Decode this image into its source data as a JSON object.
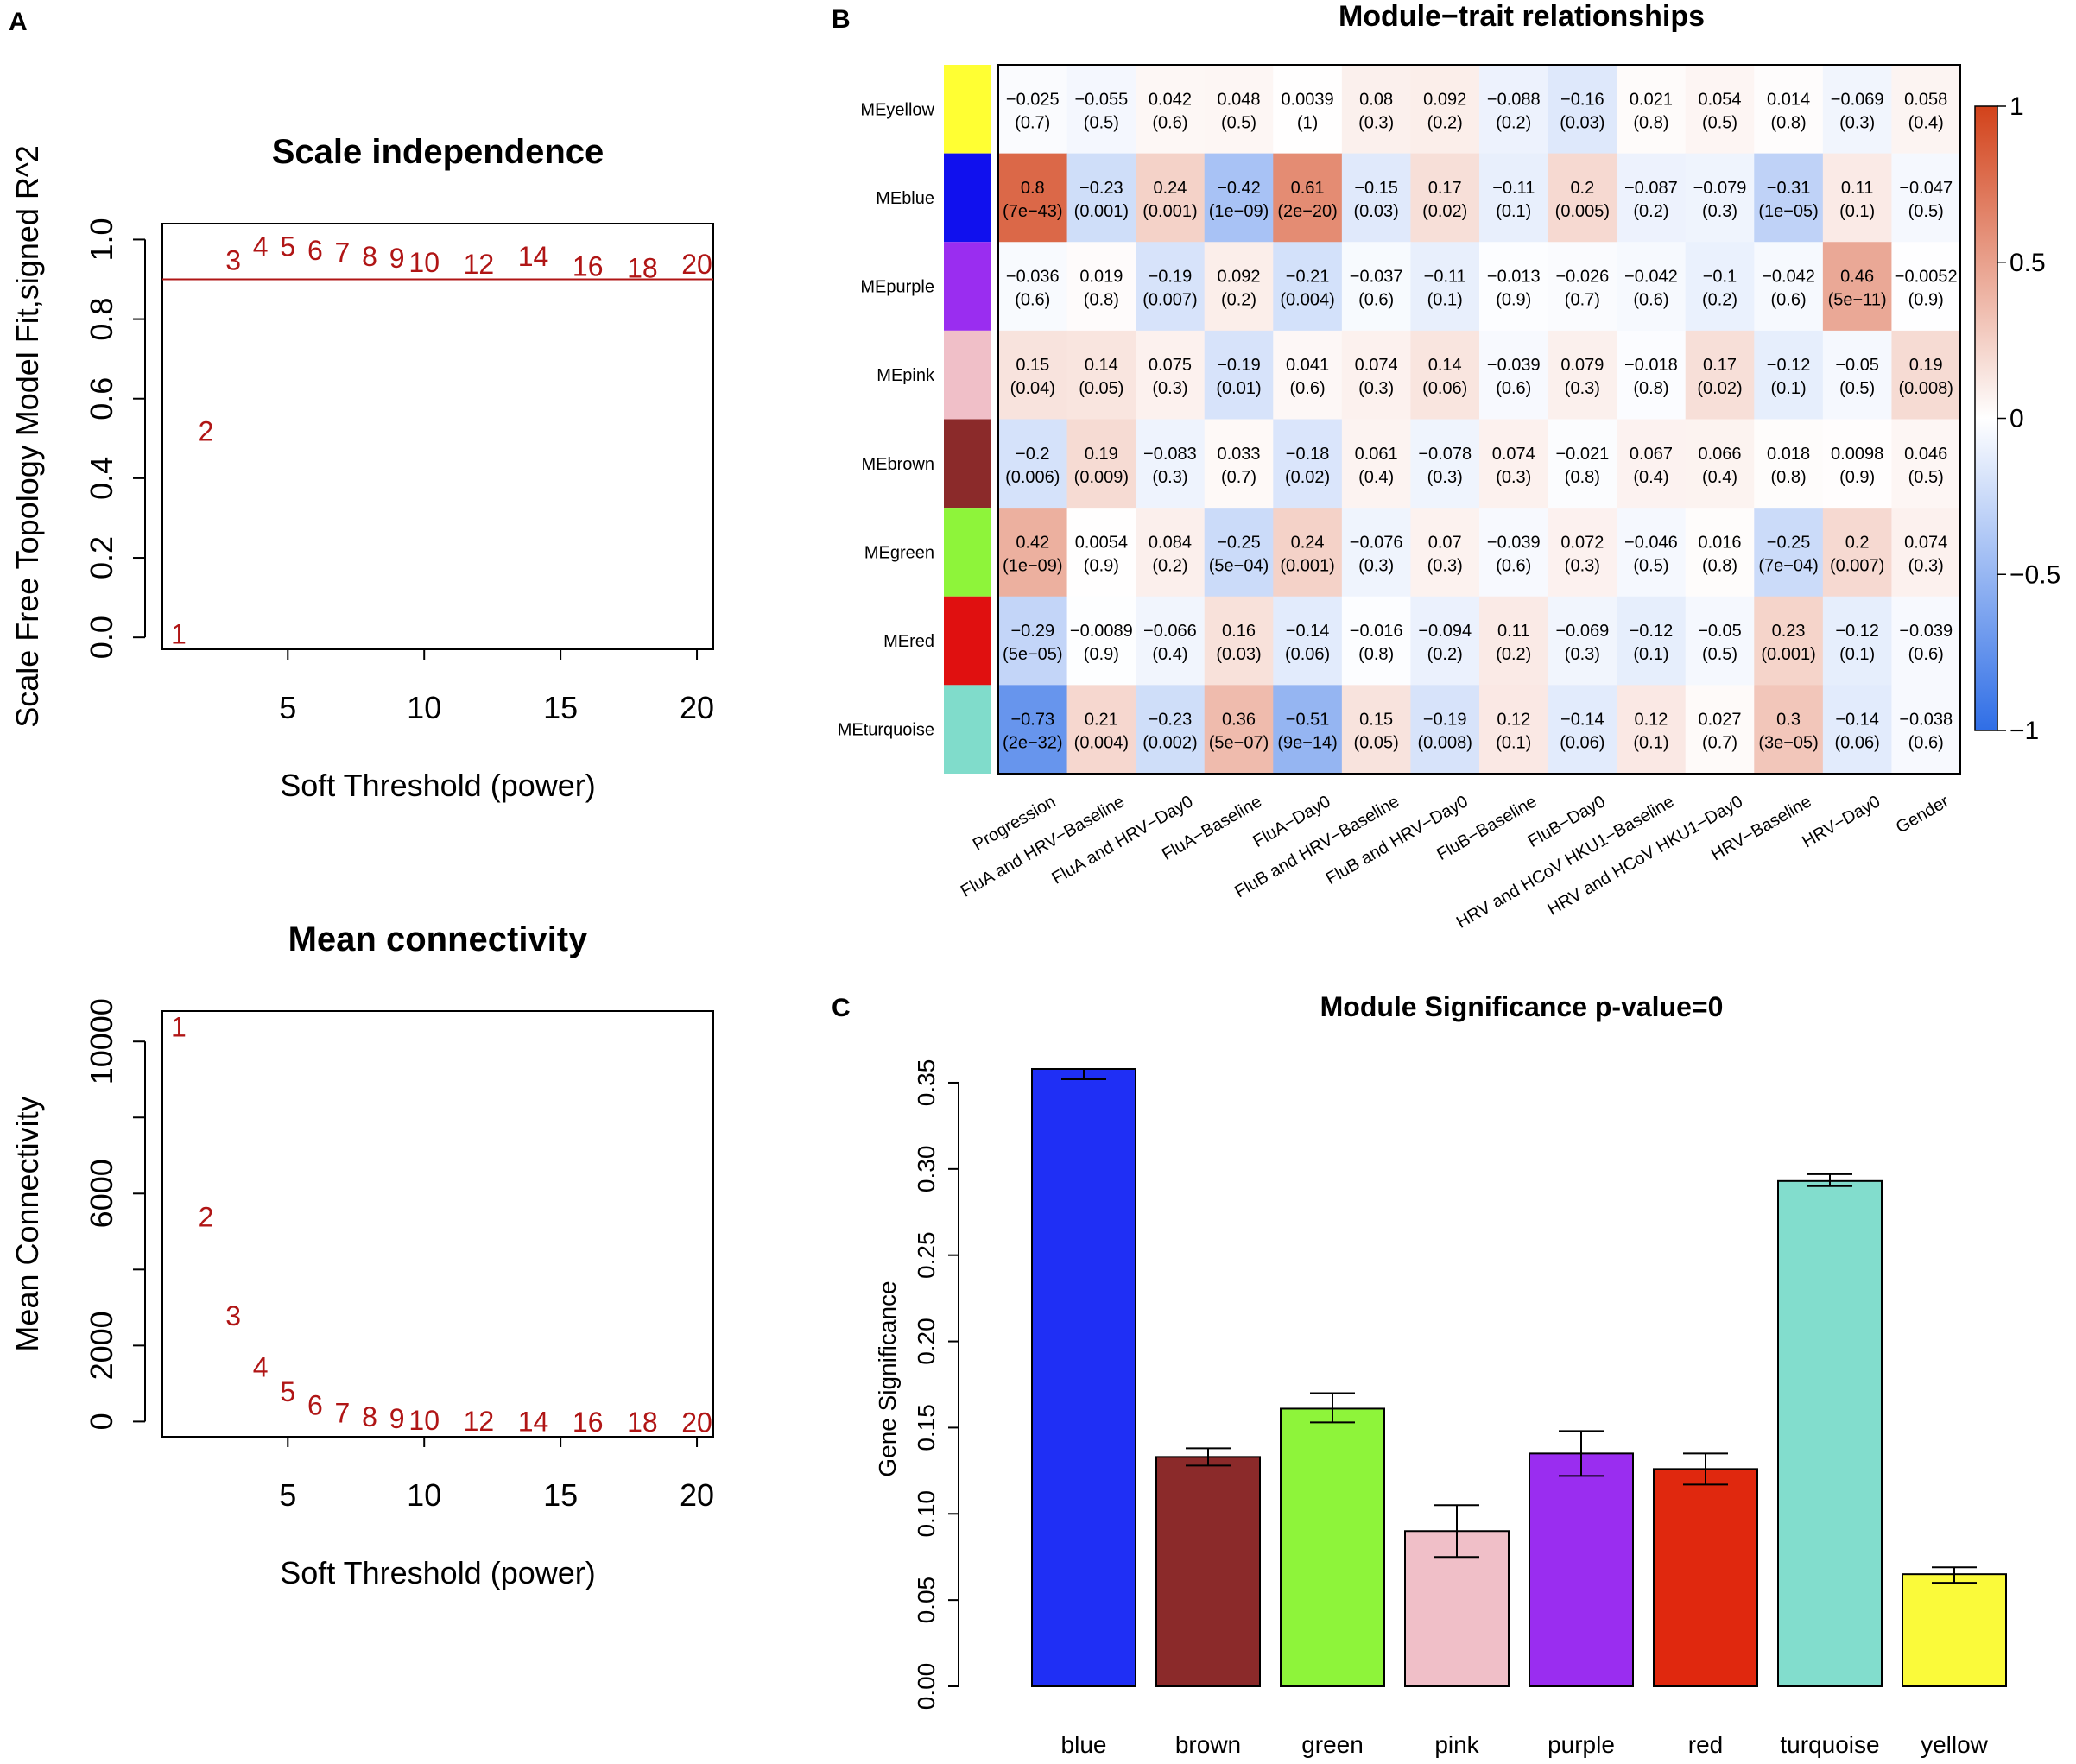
{
  "panel_labels": {
    "a": "A",
    "b": "B",
    "c": "C"
  },
  "chart_data": [
    {
      "id": "A1",
      "type": "scatter",
      "title": "Scale independence",
      "xlabel": "Soft Threshold (power)",
      "ylabel": "Scale Free Topology Model Fit,signed R^2",
      "xlim": [
        0.4,
        20.6
      ],
      "ylim": [
        -0.03,
        1.04
      ],
      "xticks": [
        "5",
        "10",
        "15",
        "20"
      ],
      "xtick_values": [
        5,
        10,
        15,
        20
      ],
      "yticks": [
        "0.0",
        "0.2",
        "0.4",
        "0.6",
        "0.8",
        "1.0"
      ],
      "ytick_values": [
        0,
        0.2,
        0.4,
        0.6,
        0.8,
        1.0
      ],
      "hline": 0.9,
      "points": [
        {
          "label": "1",
          "x": 1,
          "y": 0.01
        },
        {
          "label": "2",
          "x": 2,
          "y": 0.52
        },
        {
          "label": "3",
          "x": 3,
          "y": 0.95
        },
        {
          "label": "4",
          "x": 4,
          "y": 0.985
        },
        {
          "label": "5",
          "x": 5,
          "y": 0.985
        },
        {
          "label": "6",
          "x": 6,
          "y": 0.975
        },
        {
          "label": "7",
          "x": 7,
          "y": 0.97
        },
        {
          "label": "8",
          "x": 8,
          "y": 0.96
        },
        {
          "label": "9",
          "x": 9,
          "y": 0.955
        },
        {
          "label": "10",
          "x": 10,
          "y": 0.945
        },
        {
          "label": "12",
          "x": 12,
          "y": 0.94
        },
        {
          "label": "14",
          "x": 14,
          "y": 0.96
        },
        {
          "label": "16",
          "x": 16,
          "y": 0.935
        },
        {
          "label": "18",
          "x": 18,
          "y": 0.93
        },
        {
          "label": "20",
          "x": 20,
          "y": 0.94
        }
      ]
    },
    {
      "id": "A2",
      "type": "scatter",
      "title": "Mean connectivity",
      "xlabel": "Soft Threshold (power)",
      "ylabel": "Mean Connectivity",
      "xlim": [
        0.4,
        20.6
      ],
      "ylim": [
        -400,
        10800
      ],
      "xticks": [
        "5",
        "10",
        "15",
        "20"
      ],
      "xtick_values": [
        5,
        10,
        15,
        20
      ],
      "yticks": [
        "0",
        "2000",
        "6000",
        "10000"
      ],
      "ytick_values": [
        0,
        2000,
        6000,
        10000
      ],
      "yminor_values": [
        4000,
        8000
      ],
      "points": [
        {
          "label": "1",
          "x": 1,
          "y": 10400
        },
        {
          "label": "2",
          "x": 2,
          "y": 5400
        },
        {
          "label": "3",
          "x": 3,
          "y": 2800
        },
        {
          "label": "4",
          "x": 4,
          "y": 1450
        },
        {
          "label": "5",
          "x": 5,
          "y": 800
        },
        {
          "label": "6",
          "x": 6,
          "y": 450
        },
        {
          "label": "7",
          "x": 7,
          "y": 250
        },
        {
          "label": "8",
          "x": 8,
          "y": 150
        },
        {
          "label": "9",
          "x": 9,
          "y": 100
        },
        {
          "label": "10",
          "x": 10,
          "y": 60
        },
        {
          "label": "12",
          "x": 12,
          "y": 30
        },
        {
          "label": "14",
          "x": 14,
          "y": 20
        },
        {
          "label": "16",
          "x": 16,
          "y": 10
        },
        {
          "label": "18",
          "x": 18,
          "y": 5
        },
        {
          "label": "20",
          "x": 20,
          "y": 2
        }
      ]
    },
    {
      "id": "B",
      "type": "heatmap",
      "title": "Module−trait relationships",
      "rows": [
        "MEyellow",
        "MEblue",
        "MEpurple",
        "MEpink",
        "MEbrown",
        "MEgreen",
        "MEred",
        "MEturquoise"
      ],
      "row_colors": [
        "#ffff33",
        "#1010ee",
        "#9a2df0",
        "#f0bfc8",
        "#8b2a2a",
        "#8ef43a",
        "#e01010",
        "#80dccb"
      ],
      "columns": [
        "Progression",
        "FluA and HRV−Baseline",
        "FluA and HRV−Day0",
        "FluA−Baseline",
        "FluA−Day0",
        "FluB and HRV−Baseline",
        "FluB and HRV−Day0",
        "FluB−Baseline",
        "FluB−Day0",
        "HRV and HCoV HKU1−Baseline",
        "HRV and HCoV HKU1−Day0",
        "HRV−Baseline",
        "HRV−Day0",
        "Gender"
      ],
      "corr": [
        [
          -0.025,
          -0.055,
          0.042,
          0.048,
          0.0039,
          0.08,
          0.092,
          -0.088,
          -0.16,
          0.021,
          0.054,
          0.014,
          -0.069,
          0.058
        ],
        [
          0.8,
          -0.23,
          0.24,
          -0.42,
          0.61,
          -0.15,
          0.17,
          -0.11,
          0.2,
          -0.087,
          -0.079,
          -0.31,
          0.11,
          -0.047
        ],
        [
          -0.036,
          0.019,
          -0.19,
          0.092,
          -0.21,
          -0.037,
          -0.11,
          -0.013,
          -0.026,
          -0.042,
          -0.1,
          -0.042,
          0.46,
          -0.0052
        ],
        [
          0.15,
          0.14,
          0.075,
          -0.19,
          0.041,
          0.074,
          0.14,
          -0.039,
          0.079,
          -0.018,
          0.17,
          -0.12,
          -0.05,
          0.19
        ],
        [
          -0.2,
          0.19,
          -0.083,
          0.033,
          -0.18,
          0.061,
          -0.078,
          0.074,
          -0.021,
          0.067,
          0.066,
          0.018,
          0.0098,
          0.046
        ],
        [
          0.42,
          0.0054,
          0.084,
          -0.25,
          0.24,
          -0.076,
          0.07,
          -0.039,
          0.072,
          -0.046,
          0.016,
          -0.25,
          0.2,
          0.074
        ],
        [
          -0.29,
          -0.0089,
          -0.066,
          0.16,
          -0.14,
          -0.016,
          -0.094,
          0.11,
          -0.069,
          -0.12,
          -0.05,
          0.23,
          -0.12,
          -0.039
        ],
        [
          -0.73,
          0.21,
          -0.23,
          0.36,
          -0.51,
          0.15,
          -0.19,
          0.12,
          -0.14,
          0.12,
          0.027,
          0.3,
          -0.14,
          -0.038
        ]
      ],
      "corr_text": [
        [
          "−0.025",
          "−0.055",
          "0.042",
          "0.048",
          "0.0039",
          "0.08",
          "0.092",
          "−0.088",
          "−0.16",
          "0.021",
          "0.054",
          "0.014",
          "−0.069",
          "0.058"
        ],
        [
          "0.8",
          "−0.23",
          "0.24",
          "−0.42",
          "0.61",
          "−0.15",
          "0.17",
          "−0.11",
          "0.2",
          "−0.087",
          "−0.079",
          "−0.31",
          "0.11",
          "−0.047"
        ],
        [
          "−0.036",
          "0.019",
          "−0.19",
          "0.092",
          "−0.21",
          "−0.037",
          "−0.11",
          "−0.013",
          "−0.026",
          "−0.042",
          "−0.1",
          "−0.042",
          "0.46",
          "−0.0052"
        ],
        [
          "0.15",
          "0.14",
          "0.075",
          "−0.19",
          "0.041",
          "0.074",
          "0.14",
          "−0.039",
          "0.079",
          "−0.018",
          "0.17",
          "−0.12",
          "−0.05",
          "0.19"
        ],
        [
          "−0.2",
          "0.19",
          "−0.083",
          "0.033",
          "−0.18",
          "0.061",
          "−0.078",
          "0.074",
          "−0.021",
          "0.067",
          "0.066",
          "0.018",
          "0.0098",
          "0.046"
        ],
        [
          "0.42",
          "0.0054",
          "0.084",
          "−0.25",
          "0.24",
          "−0.076",
          "0.07",
          "−0.039",
          "0.072",
          "−0.046",
          "0.016",
          "−0.25",
          "0.2",
          "0.074"
        ],
        [
          "−0.29",
          "−0.0089",
          "−0.066",
          "0.16",
          "−0.14",
          "−0.016",
          "−0.094",
          "0.11",
          "−0.069",
          "−0.12",
          "−0.05",
          "0.23",
          "−0.12",
          "−0.039"
        ],
        [
          "−0.73",
          "0.21",
          "−0.23",
          "0.36",
          "−0.51",
          "0.15",
          "−0.19",
          "0.12",
          "−0.14",
          "0.12",
          "0.027",
          "0.3",
          "−0.14",
          "−0.038"
        ]
      ],
      "pval_text": [
        [
          "(0.7)",
          "(0.5)",
          "(0.6)",
          "(0.5)",
          "(1)",
          "(0.3)",
          "(0.2)",
          "(0.2)",
          "(0.03)",
          "(0.8)",
          "(0.5)",
          "(0.8)",
          "(0.3)",
          "(0.4)"
        ],
        [
          "(7e−43)",
          "(0.001)",
          "(0.001)",
          "(1e−09)",
          "(2e−20)",
          "(0.03)",
          "(0.02)",
          "(0.1)",
          "(0.005)",
          "(0.2)",
          "(0.3)",
          "(1e−05)",
          "(0.1)",
          "(0.5)"
        ],
        [
          "(0.6)",
          "(0.8)",
          "(0.007)",
          "(0.2)",
          "(0.004)",
          "(0.6)",
          "(0.1)",
          "(0.9)",
          "(0.7)",
          "(0.6)",
          "(0.2)",
          "(0.6)",
          "(5e−11)",
          "(0.9)"
        ],
        [
          "(0.04)",
          "(0.05)",
          "(0.3)",
          "(0.01)",
          "(0.6)",
          "(0.3)",
          "(0.06)",
          "(0.6)",
          "(0.3)",
          "(0.8)",
          "(0.02)",
          "(0.1)",
          "(0.5)",
          "(0.008)"
        ],
        [
          "(0.006)",
          "(0.009)",
          "(0.3)",
          "(0.7)",
          "(0.02)",
          "(0.4)",
          "(0.3)",
          "(0.3)",
          "(0.8)",
          "(0.4)",
          "(0.4)",
          "(0.8)",
          "(0.9)",
          "(0.5)"
        ],
        [
          "(1e−09)",
          "(0.9)",
          "(0.2)",
          "(5e−04)",
          "(0.001)",
          "(0.3)",
          "(0.3)",
          "(0.6)",
          "(0.3)",
          "(0.5)",
          "(0.8)",
          "(7e−04)",
          "(0.007)",
          "(0.3)"
        ],
        [
          "(5e−05)",
          "(0.9)",
          "(0.4)",
          "(0.03)",
          "(0.06)",
          "(0.8)",
          "(0.2)",
          "(0.2)",
          "(0.3)",
          "(0.1)",
          "(0.5)",
          "(0.001)",
          "(0.1)",
          "(0.6)"
        ],
        [
          "(2e−32)",
          "(0.004)",
          "(0.002)",
          "(5e−07)",
          "(9e−14)",
          "(0.05)",
          "(0.008)",
          "(0.1)",
          "(0.06)",
          "(0.1)",
          "(0.7)",
          "(3e−05)",
          "(0.06)",
          "(0.6)"
        ]
      ],
      "color_scale": {
        "min": -1,
        "max": 1,
        "low": "#2f6ee6",
        "mid": "#ffffff",
        "high": "#d2421a",
        "ticks": [
          "1",
          "0.5",
          "0",
          "−0.5",
          "−1"
        ],
        "tick_values": [
          1,
          0.5,
          0,
          -0.5,
          -1
        ]
      }
    },
    {
      "id": "C",
      "type": "bar",
      "title": "Module Significance p-value=0",
      "xlabel": "",
      "ylabel": "Gene Significance",
      "categories": [
        "blue",
        "brown",
        "green",
        "pink",
        "purple",
        "red",
        "turquoise",
        "yellow"
      ],
      "values": [
        0.358,
        0.133,
        0.161,
        0.09,
        0.135,
        0.126,
        0.293,
        0.065
      ],
      "error_low": [
        0.352,
        0.128,
        0.153,
        0.075,
        0.122,
        0.117,
        0.29,
        0.06
      ],
      "error_high": [
        0.358,
        0.138,
        0.17,
        0.105,
        0.148,
        0.135,
        0.297,
        0.069
      ],
      "colors": [
        "#1f2ff5",
        "#8b2a2a",
        "#8ef43a",
        "#f0bfc8",
        "#9a2df0",
        "#e0280e",
        "#82ddcd",
        "#fafa3a"
      ],
      "ylim": [
        0,
        0.36
      ],
      "yticks": [
        "0.00",
        "0.05",
        "0.10",
        "0.15",
        "0.20",
        "0.25",
        "0.30",
        "0.35"
      ],
      "ytick_values": [
        0,
        0.05,
        0.1,
        0.15,
        0.2,
        0.25,
        0.3,
        0.35
      ]
    }
  ]
}
